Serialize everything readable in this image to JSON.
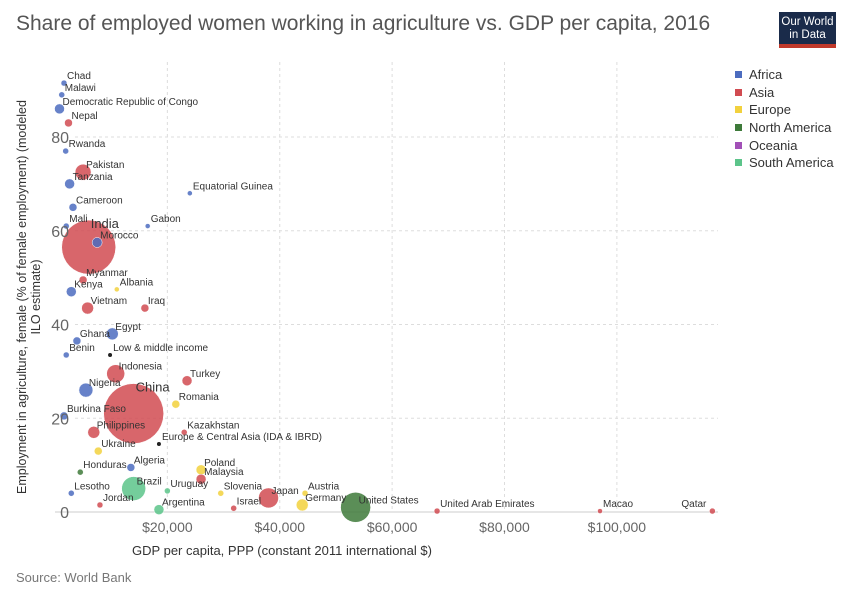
{
  "title": "Share of employed women working in agriculture vs. GDP per capita, 2016",
  "logo": {
    "line1": "Our World",
    "line2": "in Data"
  },
  "source": "Source: World Bank",
  "legend": [
    {
      "name": "Africa",
      "color": "#4c6cbf"
    },
    {
      "name": "Asia",
      "color": "#d14b51"
    },
    {
      "name": "Europe",
      "color": "#f2d13d"
    },
    {
      "name": "North America",
      "color": "#3e7a3a"
    },
    {
      "name": "Oceania",
      "color": "#a250b7"
    },
    {
      "name": "South America",
      "color": "#5cc48a"
    }
  ],
  "chart_data": {
    "type": "scatter",
    "title": "Share of employed women working in agriculture vs. GDP per capita, 2016",
    "xlabel": "GDP per capita, PPP (constant 2011 international $)",
    "ylabel": "Employment in agriculture, female (% of female employment) (modeled ILO estimate)",
    "xlim": [
      0,
      118000
    ],
    "ylim": [
      0,
      96
    ],
    "xticks": [
      {
        "value": 20000,
        "label": "$20,000"
      },
      {
        "value": 40000,
        "label": "$40,000"
      },
      {
        "value": 60000,
        "label": "$60,000"
      },
      {
        "value": 80000,
        "label": "$80,000"
      },
      {
        "value": 100000,
        "label": "$100,000"
      }
    ],
    "yticks": [
      {
        "value": 0,
        "label": "0"
      },
      {
        "value": 20,
        "label": "20"
      },
      {
        "value": 40,
        "label": "40"
      },
      {
        "value": 60,
        "label": "60"
      },
      {
        "value": 80,
        "label": "80"
      }
    ],
    "grid": true,
    "legend_position": "right",
    "points": [
      {
        "label": "Chad",
        "region": "Africa",
        "x": 1600,
        "y": 91.5,
        "r": 3
      },
      {
        "label": "Malawi",
        "region": "Africa",
        "x": 1200,
        "y": 89,
        "r": 3
      },
      {
        "label": "Democratic Republic of Congo",
        "region": "Africa",
        "x": 800,
        "y": 86,
        "r": 5
      },
      {
        "label": "Nepal",
        "region": "Asia",
        "x": 2400,
        "y": 83,
        "r": 4
      },
      {
        "label": "Rwanda",
        "region": "Africa",
        "x": 1900,
        "y": 77,
        "r": 3
      },
      {
        "label": "Pakistan",
        "region": "Asia",
        "x": 5000,
        "y": 72.5,
        "r": 8
      },
      {
        "label": "Tanzania",
        "region": "Africa",
        "x": 2600,
        "y": 70,
        "r": 5
      },
      {
        "label": "Equatorial Guinea",
        "region": "Africa",
        "x": 24000,
        "y": 68,
        "r": 2.5
      },
      {
        "label": "Cameroon",
        "region": "Africa",
        "x": 3200,
        "y": 65,
        "r": 4
      },
      {
        "label": "Gabon",
        "region": "Africa",
        "x": 16500,
        "y": 61,
        "r": 2.5
      },
      {
        "label": "Mali",
        "region": "Africa",
        "x": 2000,
        "y": 61,
        "r": 3
      },
      {
        "label": "India",
        "region": "Asia",
        "x": 6000,
        "y": 56.5,
        "r": 27
      },
      {
        "label": "Morocco",
        "region": "Africa",
        "x": 7500,
        "y": 57.5,
        "r": 5
      },
      {
        "label": "Myanmar",
        "region": "Asia",
        "x": 5000,
        "y": 49.5,
        "r": 4
      },
      {
        "label": "Kenya",
        "region": "Africa",
        "x": 2900,
        "y": 47,
        "r": 5
      },
      {
        "label": "Albania",
        "region": "Europe",
        "x": 11000,
        "y": 47.5,
        "r": 2.5
      },
      {
        "label": "Vietnam",
        "region": "Asia",
        "x": 5800,
        "y": 43.5,
        "r": 6
      },
      {
        "label": "Iraq",
        "region": "Asia",
        "x": 16000,
        "y": 43.5,
        "r": 4
      },
      {
        "label": "Egypt",
        "region": "Africa",
        "x": 10200,
        "y": 38,
        "r": 6
      },
      {
        "label": "Ghana",
        "region": "Africa",
        "x": 3900,
        "y": 36.5,
        "r": 4
      },
      {
        "label": "Benin",
        "region": "Africa",
        "x": 2000,
        "y": 33.5,
        "r": 3
      },
      {
        "label": "Low & middle income",
        "region": "",
        "x": 9800,
        "y": 33.5,
        "r": 2
      },
      {
        "label": "Indonesia",
        "region": "Asia",
        "x": 10800,
        "y": 29.5,
        "r": 9
      },
      {
        "label": "Turkey",
        "region": "Asia",
        "x": 23500,
        "y": 28,
        "r": 5
      },
      {
        "label": "Nigeria",
        "region": "Africa",
        "x": 5500,
        "y": 26,
        "r": 7
      },
      {
        "label": "China",
        "region": "Asia",
        "x": 14000,
        "y": 21,
        "r": 30
      },
      {
        "label": "Romania",
        "region": "Europe",
        "x": 21500,
        "y": 23,
        "r": 4
      },
      {
        "label": "Burkina Faso",
        "region": "Africa",
        "x": 1600,
        "y": 20.5,
        "r": 4
      },
      {
        "label": "Philippines",
        "region": "Asia",
        "x": 6900,
        "y": 17,
        "r": 6
      },
      {
        "label": "Kazakhstan",
        "region": "Asia",
        "x": 23000,
        "y": 17,
        "r": 3
      },
      {
        "label": "Europe & Central Asia (IDA & IBRD)",
        "region": "",
        "x": 18500,
        "y": 14.5,
        "r": 2
      },
      {
        "label": "Ukraine",
        "region": "Europe",
        "x": 7700,
        "y": 13,
        "r": 4
      },
      {
        "label": "Algeria",
        "region": "Africa",
        "x": 13500,
        "y": 9.5,
        "r": 4
      },
      {
        "label": "Poland",
        "region": "Europe",
        "x": 26000,
        "y": 9,
        "r": 5
      },
      {
        "label": "Honduras",
        "region": "North America",
        "x": 4500,
        "y": 8.5,
        "r": 3
      },
      {
        "label": "Malaysia",
        "region": "Asia",
        "x": 26000,
        "y": 7,
        "r": 5
      },
      {
        "label": "Brazil",
        "region": "South America",
        "x": 14000,
        "y": 5,
        "r": 12
      },
      {
        "label": "Lesotho",
        "region": "Africa",
        "x": 2900,
        "y": 4,
        "r": 3
      },
      {
        "label": "Uruguay",
        "region": "South America",
        "x": 20000,
        "y": 4.5,
        "r": 3
      },
      {
        "label": "Slovenia",
        "region": "Europe",
        "x": 29500,
        "y": 4,
        "r": 3
      },
      {
        "label": "Japan",
        "region": "Asia",
        "x": 38000,
        "y": 3,
        "r": 10
      },
      {
        "label": "Austria",
        "region": "Europe",
        "x": 44500,
        "y": 4,
        "r": 3
      },
      {
        "label": "Germany",
        "region": "Europe",
        "x": 44000,
        "y": 1.5,
        "r": 6
      },
      {
        "label": "United States",
        "region": "North America",
        "x": 53500,
        "y": 1,
        "r": 15
      },
      {
        "label": "Jordan",
        "region": "Asia",
        "x": 8000,
        "y": 1.5,
        "r": 3
      },
      {
        "label": "Argentina",
        "region": "South America",
        "x": 18500,
        "y": 0.5,
        "r": 5
      },
      {
        "label": "Israel",
        "region": "Asia",
        "x": 31800,
        "y": 0.8,
        "r": 3
      },
      {
        "label": "United Arab Emirates",
        "region": "Asia",
        "x": 68000,
        "y": 0.2,
        "r": 3
      },
      {
        "label": "Macao",
        "region": "Asia",
        "x": 97000,
        "y": 0.2,
        "r": 2.5
      },
      {
        "label": "Qatar",
        "region": "Asia",
        "x": 117000,
        "y": 0.2,
        "r": 3
      }
    ]
  }
}
